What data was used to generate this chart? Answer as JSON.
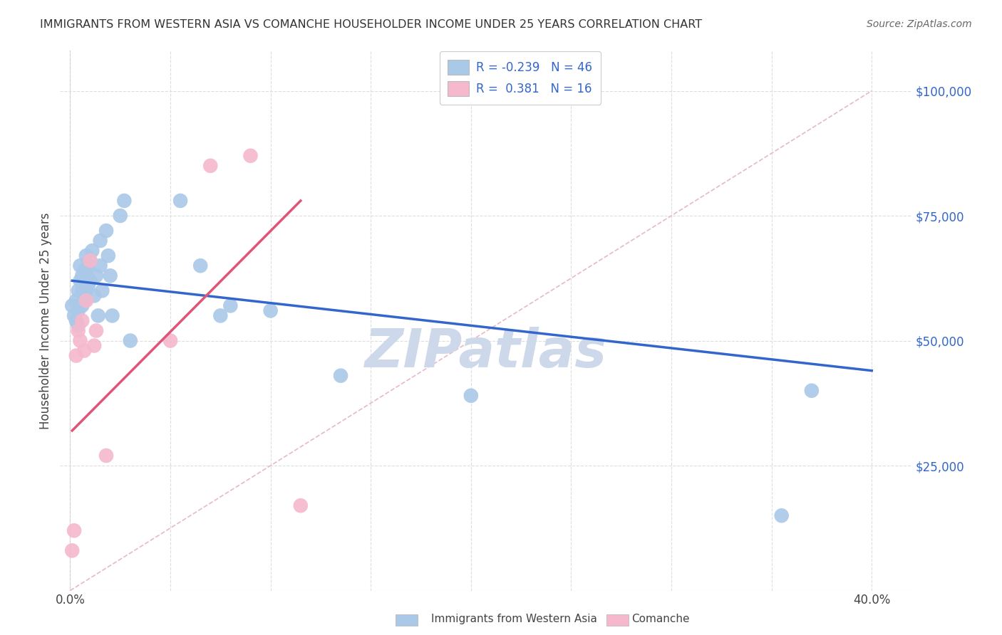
{
  "title": "IMMIGRANTS FROM WESTERN ASIA VS COMANCHE HOUSEHOLDER INCOME UNDER 25 YEARS CORRELATION CHART",
  "source": "Source: ZipAtlas.com",
  "ylabel_label": "Householder Income Under 25 years",
  "x_tick_labels": [
    "0.0%",
    "",
    "",
    "",
    "",
    "",
    "",
    "",
    "40.0%"
  ],
  "x_tick_values": [
    0.0,
    0.05,
    0.1,
    0.15,
    0.2,
    0.25,
    0.3,
    0.35,
    0.4
  ],
  "y_tick_labels": [
    "$25,000",
    "$50,000",
    "$75,000",
    "$100,000"
  ],
  "y_tick_values": [
    25000,
    50000,
    75000,
    100000
  ],
  "xlim": [
    -0.005,
    0.42
  ],
  "ylim": [
    0,
    108000
  ],
  "legend_label1": "Immigrants from Western Asia",
  "legend_label2": "Comanche",
  "r1": "-0.239",
  "n1": "46",
  "r2": "0.381",
  "n2": "16",
  "blue_color": "#aac8e8",
  "pink_color": "#f5b8cc",
  "blue_line_color": "#3366cc",
  "pink_line_color": "#e05575",
  "diagonal_color": "#cccccc",
  "background_color": "#ffffff",
  "grid_color": "#dddddd",
  "watermark_color": "#cdd8ea",
  "title_color": "#333333",
  "source_color": "#666666",
  "y_label_color": "#3366cc",
  "blue_points_x": [
    0.001,
    0.002,
    0.003,
    0.003,
    0.004,
    0.004,
    0.004,
    0.005,
    0.005,
    0.005,
    0.006,
    0.006,
    0.006,
    0.007,
    0.007,
    0.007,
    0.008,
    0.008,
    0.008,
    0.009,
    0.009,
    0.01,
    0.01,
    0.011,
    0.012,
    0.013,
    0.014,
    0.015,
    0.015,
    0.016,
    0.018,
    0.019,
    0.02,
    0.021,
    0.025,
    0.027,
    0.03,
    0.055,
    0.065,
    0.075,
    0.08,
    0.1,
    0.135,
    0.2,
    0.355,
    0.37
  ],
  "blue_points_y": [
    57000,
    55000,
    58000,
    54000,
    60000,
    56000,
    53000,
    65000,
    62000,
    57000,
    63000,
    60000,
    57000,
    64000,
    61000,
    58000,
    67000,
    64000,
    60000,
    65000,
    61000,
    66000,
    62000,
    68000,
    59000,
    63000,
    55000,
    70000,
    65000,
    60000,
    72000,
    67000,
    63000,
    55000,
    75000,
    78000,
    50000,
    78000,
    65000,
    55000,
    57000,
    56000,
    43000,
    39000,
    15000,
    40000
  ],
  "pink_points_x": [
    0.001,
    0.002,
    0.003,
    0.004,
    0.005,
    0.006,
    0.007,
    0.008,
    0.01,
    0.012,
    0.013,
    0.018,
    0.05,
    0.07,
    0.09,
    0.115
  ],
  "pink_points_y": [
    8000,
    12000,
    47000,
    52000,
    50000,
    54000,
    48000,
    58000,
    66000,
    49000,
    52000,
    27000,
    50000,
    85000,
    87000,
    17000
  ],
  "blue_line_x0": 0.001,
  "blue_line_x1": 0.4,
  "blue_line_y0": 62000,
  "blue_line_y1": 44000,
  "pink_line_x0": 0.001,
  "pink_line_x1": 0.115,
  "pink_line_y0": 32000,
  "pink_line_y1": 78000
}
